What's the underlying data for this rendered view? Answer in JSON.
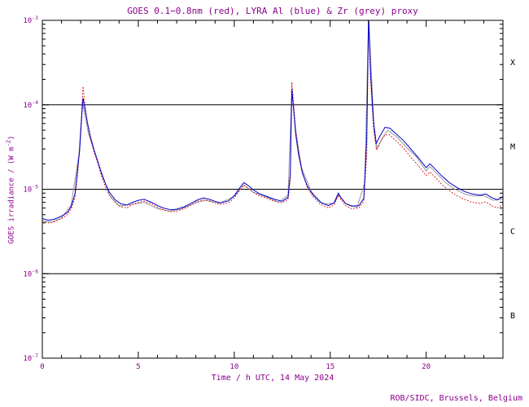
{
  "footer": {
    "credit": "ROB/SIDC, Brussels, Belgium"
  },
  "colors": {
    "axis_text": "#8b008b",
    "frame": "#000000",
    "goes_red": "#dd0000",
    "lyra_al_blue": "#0000cc",
    "lyra_zr_grey": "#999999"
  },
  "chart_data": {
    "type": "line",
    "title": "GOES 0.1−0.8nm (red), LYRA Al (blue) & Zr (grey) proxy",
    "xlabel": "Time / h UTC, 14 May 2024",
    "ylabel_parts": {
      "pre": "GOES irradiance / (W m",
      "exp": "-2",
      "post": ")"
    },
    "x_range": [
      0,
      24
    ],
    "x_minor_step": 1,
    "x_major_ticks": [
      {
        "t": 0,
        "label": "0"
      },
      {
        "t": 5,
        "label": "5"
      },
      {
        "t": 10,
        "label": "10"
      },
      {
        "t": 15,
        "label": "15"
      },
      {
        "t": 20,
        "label": "20"
      }
    ],
    "y_scale": "log",
    "y_range_exp": [
      -7,
      -3
    ],
    "y_ticks": [
      {
        "exp": -7,
        "base": "10",
        "exp_label": "-7"
      },
      {
        "exp": -6,
        "base": "10",
        "exp_label": "-6"
      },
      {
        "exp": -5,
        "base": "10",
        "exp_label": "-5"
      },
      {
        "exp": -4,
        "base": "10",
        "exp_label": "-4"
      },
      {
        "exp": -3,
        "base": "10",
        "exp_label": "-3"
      }
    ],
    "hlines_exp": [
      -4,
      -5,
      -6
    ],
    "flare_class_labels": [
      {
        "label": "X",
        "decade_mid": -3.5
      },
      {
        "label": "M",
        "decade_mid": -4.5
      },
      {
        "label": "C",
        "decade_mid": -5.5
      },
      {
        "label": "B",
        "decade_mid": -6.5
      }
    ],
    "legend": "encoded in title: red=GOES, blue=LYRA Al, grey=LYRA Zr",
    "series": [
      {
        "name": "LYRA Zr proxy",
        "color_key": "lyra_zr_grey",
        "style": "solid",
        "points": [
          [
            0,
            4.2e-06
          ],
          [
            0.5,
            4.1e-06
          ],
          [
            1,
            4.6e-06
          ],
          [
            1.5,
            6.5e-06
          ],
          [
            1.9,
            2.5e-05
          ],
          [
            2.1,
            0.000105
          ],
          [
            2.4,
            4.6e-05
          ],
          [
            3,
            1.8e-05
          ],
          [
            3.5,
            8.5e-06
          ],
          [
            4,
            6.3e-06
          ],
          [
            4.8,
            6.7e-06
          ],
          [
            5.3,
            7e-06
          ],
          [
            6,
            5.9e-06
          ],
          [
            6.6,
            5.5e-06
          ],
          [
            7.2,
            5.8e-06
          ],
          [
            8,
            6.9e-06
          ],
          [
            8.5,
            7.4e-06
          ],
          [
            9.2,
            6.8e-06
          ],
          [
            10,
            8.2e-06
          ],
          [
            10.5,
            1.12e-05
          ],
          [
            11,
            9.2e-06
          ],
          [
            11.6,
            8.2e-06
          ],
          [
            12.3,
            7e-06
          ],
          [
            12.8,
            8.5e-06
          ],
          [
            13.0,
            0.00015
          ],
          [
            13.2,
            5e-05
          ],
          [
            13.5,
            1.8e-05
          ],
          [
            14,
            9.5e-06
          ],
          [
            14.6,
            6.7e-06
          ],
          [
            15.2,
            6.8e-06
          ],
          [
            15.45,
            8.6e-06
          ],
          [
            15.8,
            6.8e-06
          ],
          [
            16.4,
            6.1e-06
          ],
          [
            16.8,
            1.2e-05
          ],
          [
            17.0,
            0.0011
          ],
          [
            17.3,
            4.5e-05
          ],
          [
            17.45,
            3e-05
          ],
          [
            17.7,
            4e-05
          ],
          [
            18.0,
            5e-05
          ],
          [
            18.5,
            4.1e-05
          ],
          [
            19,
            3.1e-05
          ],
          [
            19.5,
            2.4e-05
          ],
          [
            20,
            1.65e-05
          ],
          [
            20.2,
            1.85e-05
          ],
          [
            20.6,
            1.5e-05
          ],
          [
            21,
            1.2e-05
          ],
          [
            21.5,
            1e-05
          ],
          [
            22,
            8.8e-06
          ],
          [
            22.5,
            8.3e-06
          ],
          [
            23,
            8.4e-06
          ],
          [
            23.5,
            7.4e-06
          ],
          [
            24,
            7.6e-06
          ]
        ]
      },
      {
        "name": "GOES 0.1-0.8nm",
        "color_key": "goes_red",
        "style": "dotted",
        "points": [
          [
            0,
            4.2e-06
          ],
          [
            0.3,
            4e-06
          ],
          [
            0.6,
            4.1e-06
          ],
          [
            1.0,
            4.5e-06
          ],
          [
            1.3,
            5e-06
          ],
          [
            1.5,
            5.8e-06
          ],
          [
            1.7,
            8e-06
          ],
          [
            1.85,
            1.6e-05
          ],
          [
            1.95,
            3.2e-05
          ],
          [
            2.05,
            8e-05
          ],
          [
            2.12,
            0.000165
          ],
          [
            2.2,
            0.00011
          ],
          [
            2.35,
            6e-05
          ],
          [
            2.5,
            4e-05
          ],
          [
            2.7,
            2.7e-05
          ],
          [
            2.9,
            2e-05
          ],
          [
            3.1,
            1.4e-05
          ],
          [
            3.3,
            1.05e-05
          ],
          [
            3.5,
            8.5e-06
          ],
          [
            3.8,
            7e-06
          ],
          [
            4.1,
            6.2e-06
          ],
          [
            4.4,
            6e-06
          ],
          [
            4.7,
            6.6e-06
          ],
          [
            5.0,
            7e-06
          ],
          [
            5.3,
            7.2e-06
          ],
          [
            5.7,
            6.7e-06
          ],
          [
            6.0,
            6.1e-06
          ],
          [
            6.3,
            5.7e-06
          ],
          [
            6.7,
            5.4e-06
          ],
          [
            7.0,
            5.5e-06
          ],
          [
            7.4,
            5.9e-06
          ],
          [
            7.8,
            6.6e-06
          ],
          [
            8.1,
            7.2e-06
          ],
          [
            8.4,
            7.5e-06
          ],
          [
            8.7,
            7.3e-06
          ],
          [
            9.0,
            6.9e-06
          ],
          [
            9.3,
            6.6e-06
          ],
          [
            9.7,
            6.9e-06
          ],
          [
            10.0,
            7.9e-06
          ],
          [
            10.3,
            9.8e-06
          ],
          [
            10.5,
            1.12e-05
          ],
          [
            10.7,
            1.04e-05
          ],
          [
            11.0,
            9.2e-06
          ],
          [
            11.3,
            8.4e-06
          ],
          [
            11.7,
            7.8e-06
          ],
          [
            12.1,
            7.2e-06
          ],
          [
            12.5,
            6.9e-06
          ],
          [
            12.8,
            7.6e-06
          ],
          [
            12.92,
            1.3e-05
          ],
          [
            13.0,
            0.000185
          ],
          [
            13.08,
            0.00011
          ],
          [
            13.2,
            5e-05
          ],
          [
            13.35,
            2.8e-05
          ],
          [
            13.55,
            1.6e-05
          ],
          [
            13.8,
            1.05e-05
          ],
          [
            14.1,
            8.2e-06
          ],
          [
            14.5,
            6.6e-06
          ],
          [
            14.9,
            6e-06
          ],
          [
            15.2,
            6.5e-06
          ],
          [
            15.42,
            8.6e-06
          ],
          [
            15.55,
            7.6e-06
          ],
          [
            15.8,
            6.4e-06
          ],
          [
            16.1,
            5.9e-06
          ],
          [
            16.5,
            6e-06
          ],
          [
            16.75,
            7.2e-06
          ],
          [
            16.9,
            2.5e-05
          ],
          [
            17.0,
            0.00115
          ],
          [
            17.1,
            0.0002
          ],
          [
            17.25,
            5.5e-05
          ],
          [
            17.4,
            3e-05
          ],
          [
            17.6,
            3.6e-05
          ],
          [
            17.85,
            4.4e-05
          ],
          [
            18.1,
            4.4e-05
          ],
          [
            18.4,
            3.8e-05
          ],
          [
            18.8,
            3.1e-05
          ],
          [
            19.2,
            2.4e-05
          ],
          [
            19.6,
            1.9e-05
          ],
          [
            20.0,
            1.45e-05
          ],
          [
            20.2,
            1.6e-05
          ],
          [
            20.45,
            1.4e-05
          ],
          [
            20.8,
            1.15e-05
          ],
          [
            21.2,
            9.6e-06
          ],
          [
            21.6,
            8.4e-06
          ],
          [
            22.0,
            7.6e-06
          ],
          [
            22.4,
            7e-06
          ],
          [
            22.8,
            6.8e-06
          ],
          [
            23.1,
            7.1e-06
          ],
          [
            23.4,
            6.4e-06
          ],
          [
            23.7,
            6e-06
          ],
          [
            24,
            6.6e-06
          ]
        ]
      },
      {
        "name": "LYRA Al proxy",
        "color_key": "lyra_al_blue",
        "style": "solid",
        "points": [
          [
            0,
            4.5e-06
          ],
          [
            0.3,
            4.3e-06
          ],
          [
            0.6,
            4.4e-06
          ],
          [
            1.0,
            4.8e-06
          ],
          [
            1.3,
            5.3e-06
          ],
          [
            1.5,
            6.2e-06
          ],
          [
            1.7,
            8.8e-06
          ],
          [
            1.85,
            1.8e-05
          ],
          [
            1.95,
            3e-05
          ],
          [
            2.05,
            7e-05
          ],
          [
            2.12,
            0.00012
          ],
          [
            2.2,
            9.5e-05
          ],
          [
            2.35,
            6.2e-05
          ],
          [
            2.5,
            4.2e-05
          ],
          [
            2.7,
            2.9e-05
          ],
          [
            2.9,
            2.1e-05
          ],
          [
            3.1,
            1.5e-05
          ],
          [
            3.3,
            1.15e-05
          ],
          [
            3.5,
            9.2e-06
          ],
          [
            3.8,
            7.5e-06
          ],
          [
            4.1,
            6.7e-06
          ],
          [
            4.4,
            6.5e-06
          ],
          [
            4.7,
            7e-06
          ],
          [
            5.0,
            7.4e-06
          ],
          [
            5.3,
            7.6e-06
          ],
          [
            5.7,
            7e-06
          ],
          [
            6.0,
            6.4e-06
          ],
          [
            6.3,
            6e-06
          ],
          [
            6.7,
            5.7e-06
          ],
          [
            7.0,
            5.8e-06
          ],
          [
            7.4,
            6.2e-06
          ],
          [
            7.8,
            6.9e-06
          ],
          [
            8.1,
            7.5e-06
          ],
          [
            8.4,
            7.9e-06
          ],
          [
            8.7,
            7.6e-06
          ],
          [
            9.0,
            7.2e-06
          ],
          [
            9.3,
            6.9e-06
          ],
          [
            9.7,
            7.3e-06
          ],
          [
            10.0,
            8.4e-06
          ],
          [
            10.3,
            1.05e-05
          ],
          [
            10.5,
            1.2e-05
          ],
          [
            10.7,
            1.12e-05
          ],
          [
            11.0,
            9.8e-06
          ],
          [
            11.3,
            8.9e-06
          ],
          [
            11.7,
            8.2e-06
          ],
          [
            12.1,
            7.6e-06
          ],
          [
            12.5,
            7.2e-06
          ],
          [
            12.8,
            8e-06
          ],
          [
            12.92,
            1.5e-05
          ],
          [
            13.0,
            0.000155
          ],
          [
            13.08,
            9.5e-05
          ],
          [
            13.2,
            4.5e-05
          ],
          [
            13.35,
            2.6e-05
          ],
          [
            13.55,
            1.55e-05
          ],
          [
            13.8,
            1.1e-05
          ],
          [
            14.1,
            8.6e-06
          ],
          [
            14.5,
            7e-06
          ],
          [
            14.9,
            6.4e-06
          ],
          [
            15.2,
            6.9e-06
          ],
          [
            15.42,
            9e-06
          ],
          [
            15.55,
            8e-06
          ],
          [
            15.8,
            6.8e-06
          ],
          [
            16.1,
            6.3e-06
          ],
          [
            16.5,
            6.4e-06
          ],
          [
            16.75,
            7.8e-06
          ],
          [
            16.9,
            4e-05
          ],
          [
            17.0,
            0.0011
          ],
          [
            17.1,
            0.00024
          ],
          [
            17.25,
            6.5e-05
          ],
          [
            17.4,
            3.5e-05
          ],
          [
            17.6,
            4.3e-05
          ],
          [
            17.85,
            5.4e-05
          ],
          [
            18.1,
            5.3e-05
          ],
          [
            18.4,
            4.6e-05
          ],
          [
            18.8,
            3.8e-05
          ],
          [
            19.2,
            3e-05
          ],
          [
            19.6,
            2.35e-05
          ],
          [
            20.0,
            1.8e-05
          ],
          [
            20.2,
            2e-05
          ],
          [
            20.45,
            1.75e-05
          ],
          [
            20.8,
            1.45e-05
          ],
          [
            21.2,
            1.2e-05
          ],
          [
            21.6,
            1.05e-05
          ],
          [
            22.0,
            9.4e-06
          ],
          [
            22.4,
            8.8e-06
          ],
          [
            22.8,
            8.5e-06
          ],
          [
            23.1,
            8.8e-06
          ],
          [
            23.4,
            8e-06
          ],
          [
            23.7,
            7.5e-06
          ],
          [
            24,
            8.2e-06
          ]
        ]
      }
    ]
  }
}
